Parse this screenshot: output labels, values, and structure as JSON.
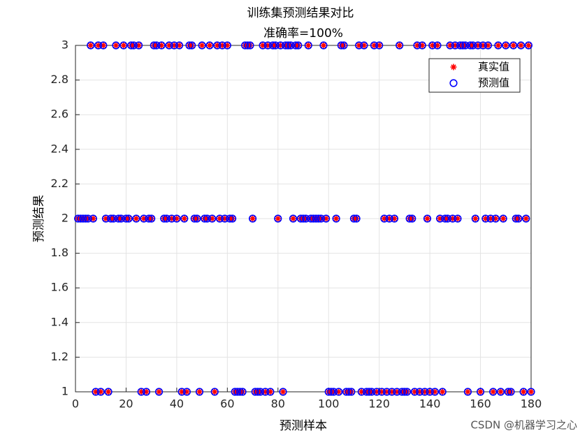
{
  "chart_data": {
    "type": "scatter",
    "title": "训练集预测结果对比",
    "subtitle": "准确率=100%",
    "x_label": "预测样本",
    "y_label": "预测结果",
    "watermark": "CSDN @机器学习之心",
    "xlim": [
      0,
      180
    ],
    "xticks": [
      0,
      20,
      40,
      60,
      80,
      100,
      120,
      140,
      160,
      180
    ],
    "ylim": [
      1,
      3
    ],
    "yticks": [
      1,
      1.2,
      1.4,
      1.6,
      1.8,
      2,
      2.2,
      2.4,
      2.6,
      2.8,
      3
    ],
    "grid": true,
    "legend": "upper right",
    "x": [
      1,
      2,
      3,
      4,
      5,
      6,
      7,
      8,
      9,
      10,
      11,
      12,
      13,
      14,
      15,
      16,
      17,
      18,
      19,
      20,
      21,
      22,
      23,
      24,
      25,
      26,
      27,
      28,
      29,
      30,
      31,
      32,
      33,
      34,
      35,
      36,
      37,
      38,
      39,
      40,
      41,
      42,
      43,
      44,
      45,
      46,
      47,
      48,
      49,
      50,
      51,
      52,
      53,
      54,
      55,
      56,
      57,
      58,
      59,
      60,
      61,
      62,
      63,
      64,
      65,
      66,
      67,
      68,
      69,
      70,
      71,
      72,
      73,
      74,
      75,
      76,
      77,
      78,
      79,
      80,
      81,
      82,
      83,
      84,
      85,
      86,
      87,
      88,
      89,
      90,
      91,
      92,
      93,
      94,
      95,
      96,
      97,
      98,
      99,
      100,
      101,
      102,
      103,
      104,
      105,
      106,
      107,
      108,
      109,
      110,
      111,
      112,
      113,
      114,
      115,
      116,
      117,
      118,
      119,
      120,
      121,
      122,
      123,
      124,
      125,
      126,
      127,
      128,
      129,
      130,
      131,
      132,
      133,
      134,
      135,
      136,
      137,
      138,
      139,
      140,
      141,
      142,
      143,
      144,
      145,
      146,
      147,
      148,
      149,
      150,
      151,
      152,
      153,
      154,
      155,
      156,
      157,
      158,
      159,
      160,
      161,
      162,
      163,
      164,
      165,
      166,
      167,
      168,
      169,
      170,
      171,
      172,
      173,
      174,
      175,
      176,
      177,
      178,
      179,
      180
    ],
    "series": [
      {
        "name": "真实值",
        "color": "#ff0000",
        "marker": "asterisk",
        "values": [
          2,
          2,
          2,
          2,
          2,
          3,
          2,
          1,
          3,
          1,
          3,
          2,
          1,
          2,
          2,
          3,
          2,
          2,
          3,
          2,
          2,
          3,
          3,
          2,
          3,
          1,
          2,
          1,
          2,
          2,
          3,
          3,
          1,
          3,
          2,
          2,
          3,
          2,
          3,
          2,
          3,
          1,
          2,
          1,
          3,
          3,
          2,
          2,
          1,
          3,
          2,
          2,
          3,
          2,
          1,
          3,
          2,
          3,
          2,
          3,
          2,
          2,
          1,
          1,
          1,
          1,
          3,
          3,
          3,
          2,
          1,
          1,
          1,
          3,
          1,
          3,
          1,
          3,
          3,
          2,
          3,
          1,
          3,
          3,
          3,
          2,
          3,
          3,
          2,
          2,
          2,
          3,
          2,
          2,
          2,
          2,
          2,
          3,
          2,
          1,
          1,
          1,
          2,
          1,
          3,
          3,
          1,
          1,
          1,
          2,
          2,
          3,
          1,
          3,
          1,
          1,
          1,
          3,
          1,
          3,
          1,
          2,
          1,
          2,
          1,
          2,
          1,
          3,
          1,
          1,
          1,
          2,
          2,
          1,
          3,
          1,
          3,
          1,
          2,
          1,
          3,
          1,
          3,
          2,
          1,
          2,
          2,
          3,
          2,
          3,
          2,
          3,
          3,
          3,
          1,
          3,
          3,
          2,
          3,
          1,
          3,
          2,
          3,
          2,
          1,
          2,
          3,
          1,
          2,
          3,
          1,
          1,
          3,
          2,
          2,
          3,
          1,
          2,
          3,
          1
        ]
      },
      {
        "name": "预测值",
        "color": "#0000ff",
        "marker": "circle",
        "values": [
          2,
          2,
          2,
          2,
          2,
          3,
          2,
          1,
          3,
          1,
          3,
          2,
          1,
          2,
          2,
          3,
          2,
          2,
          3,
          2,
          2,
          3,
          3,
          2,
          3,
          1,
          2,
          1,
          2,
          2,
          3,
          3,
          1,
          3,
          2,
          2,
          3,
          2,
          3,
          2,
          3,
          1,
          2,
          1,
          3,
          3,
          2,
          2,
          1,
          3,
          2,
          2,
          3,
          2,
          1,
          3,
          2,
          3,
          2,
          3,
          2,
          2,
          1,
          1,
          1,
          1,
          3,
          3,
          3,
          2,
          1,
          1,
          1,
          3,
          1,
          3,
          1,
          3,
          3,
          2,
          3,
          1,
          3,
          3,
          3,
          2,
          3,
          3,
          2,
          2,
          2,
          3,
          2,
          2,
          2,
          2,
          2,
          3,
          2,
          1,
          1,
          1,
          2,
          1,
          3,
          3,
          1,
          1,
          1,
          2,
          2,
          3,
          1,
          3,
          1,
          1,
          1,
          3,
          1,
          3,
          1,
          2,
          1,
          2,
          1,
          2,
          1,
          3,
          1,
          1,
          1,
          2,
          2,
          1,
          3,
          1,
          3,
          1,
          2,
          1,
          3,
          1,
          3,
          2,
          1,
          2,
          2,
          3,
          2,
          3,
          2,
          3,
          3,
          3,
          1,
          3,
          3,
          2,
          3,
          1,
          3,
          2,
          3,
          2,
          1,
          2,
          3,
          1,
          2,
          3,
          1,
          1,
          3,
          2,
          2,
          3,
          1,
          2,
          3,
          1
        ]
      }
    ]
  }
}
